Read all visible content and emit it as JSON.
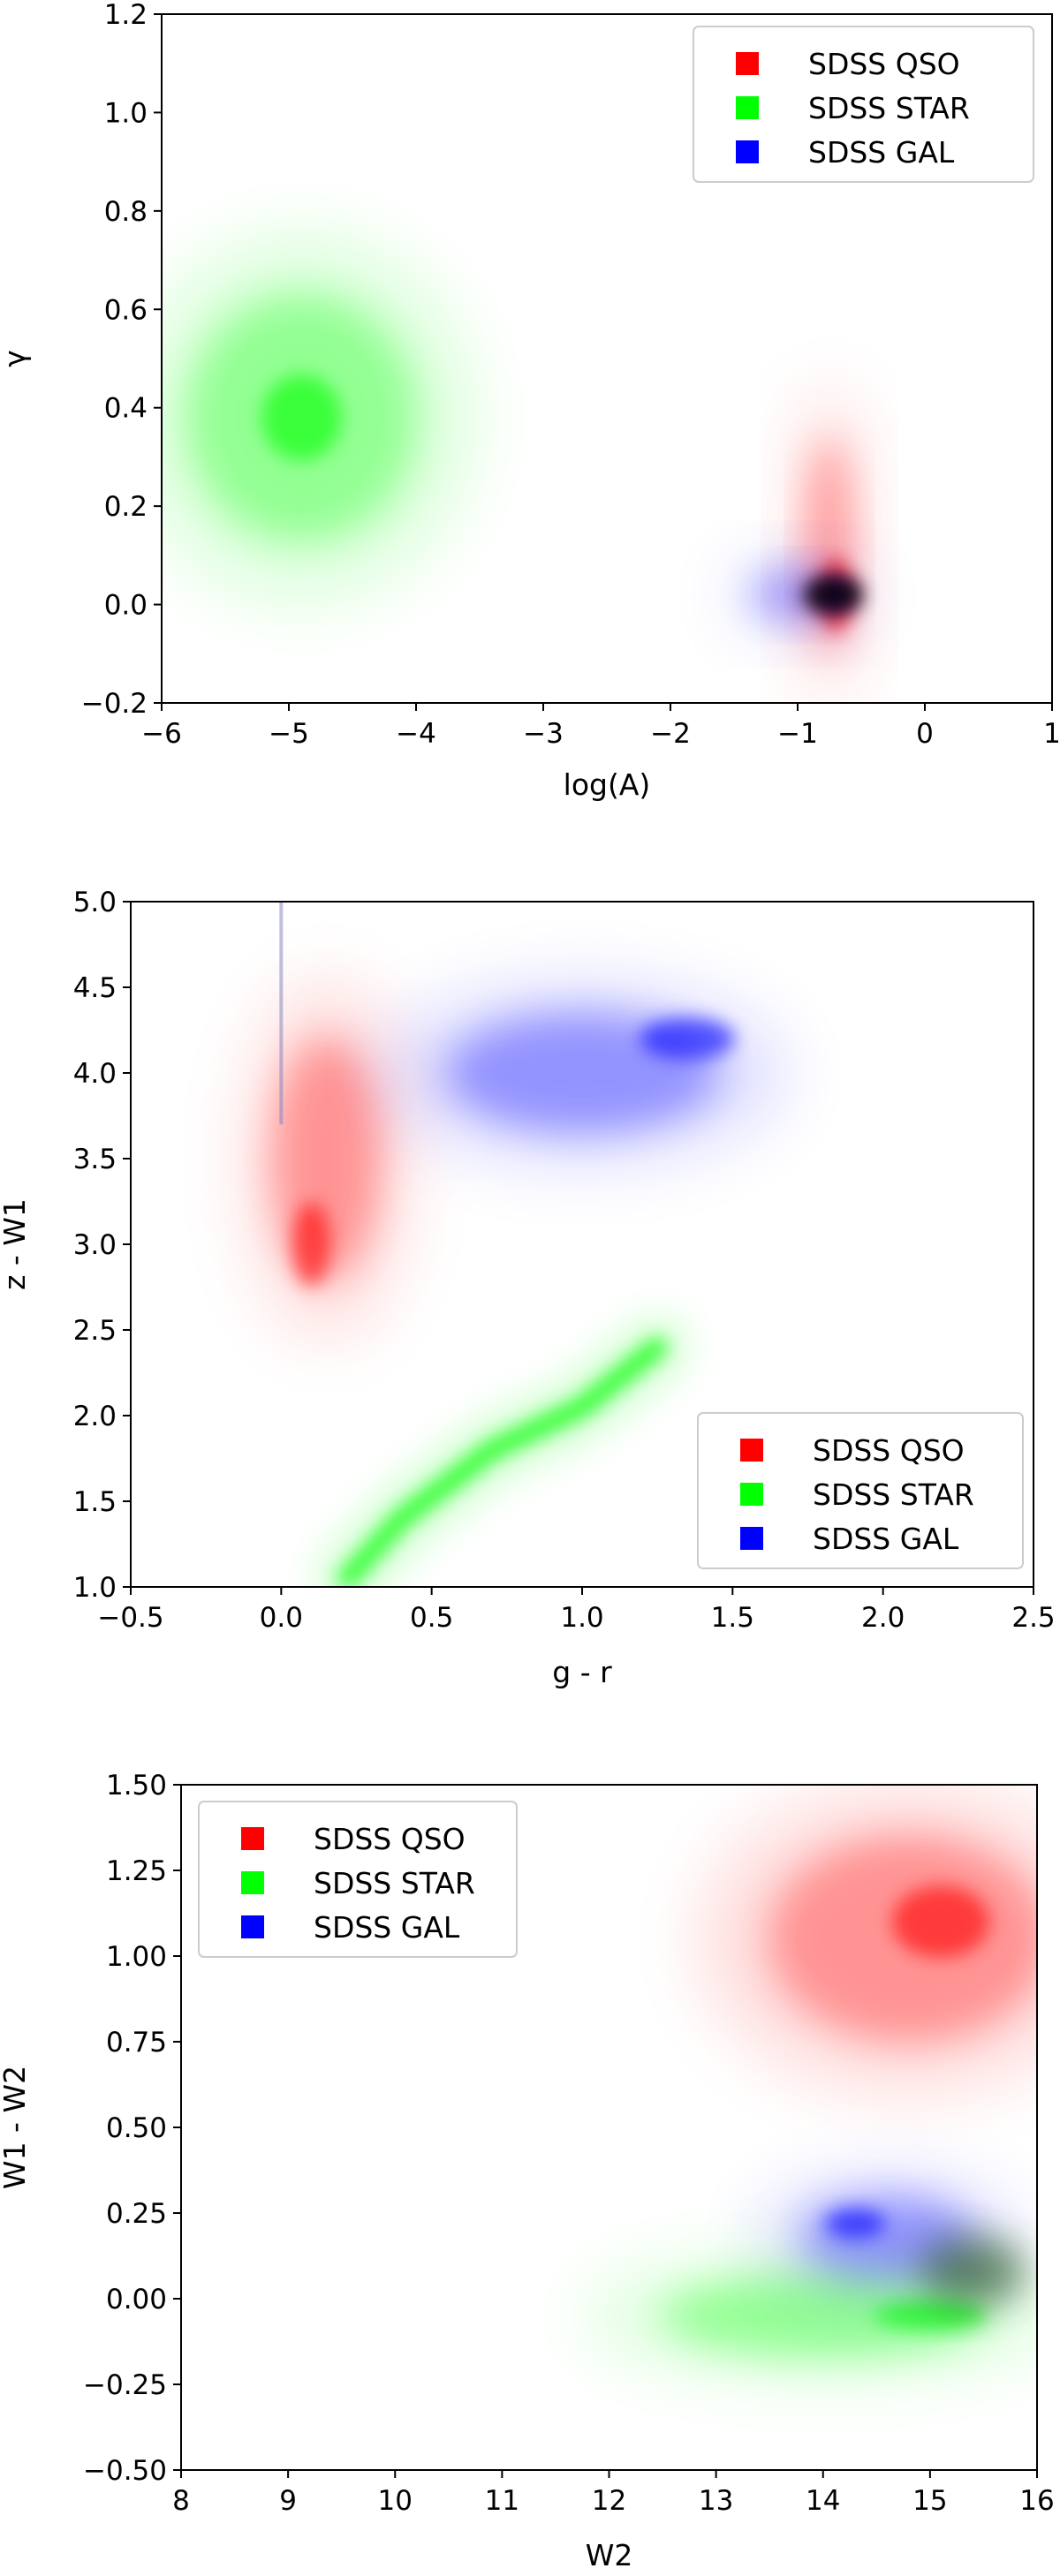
{
  "chart_data": [
    {
      "type": "scatter",
      "title": "",
      "xlabel": "log(A)",
      "ylabel": "γ",
      "xlim": [
        -6,
        1
      ],
      "ylim": [
        -0.2,
        1.2
      ],
      "xticks": [
        -6,
        -5,
        -4,
        -3,
        -2,
        -1,
        0,
        1
      ],
      "xtick_labels": [
        "−6",
        "−5",
        "−4",
        "−3",
        "−2",
        "−1",
        "0",
        "1"
      ],
      "yticks": [
        -0.2,
        0.0,
        0.2,
        0.4,
        0.6,
        0.8,
        1.0,
        1.2
      ],
      "ytick_labels": [
        "−0.2",
        "0.0",
        "0.2",
        "0.4",
        "0.6",
        "0.8",
        "1.0",
        "1.2"
      ],
      "legend_position": "top-right",
      "grid": false,
      "series": [
        {
          "name": "SDSS QSO",
          "color": "#ff0000",
          "center": [
            -0.75,
            0.12
          ],
          "spread": [
            0.18,
            0.22
          ],
          "density_peak": [
            -0.7,
            0.02
          ]
        },
        {
          "name": "SDSS STAR",
          "color": "#00ff00",
          "center": [
            -4.9,
            0.38
          ],
          "spread": [
            0.9,
            0.25
          ],
          "density_peak": [
            -4.9,
            0.38
          ]
        },
        {
          "name": "SDSS GAL",
          "color": "#0000ff",
          "center": [
            -1.0,
            0.02
          ],
          "spread": [
            0.35,
            0.05
          ],
          "density_peak": [
            -0.7,
            0.02
          ]
        }
      ]
    },
    {
      "type": "scatter",
      "title": "",
      "xlabel": "g - r",
      "ylabel": "z - W1",
      "xlim": [
        -0.5,
        2.5
      ],
      "ylim": [
        1.0,
        5.0
      ],
      "xticks": [
        -0.5,
        0.0,
        0.5,
        1.0,
        1.5,
        2.0,
        2.5
      ],
      "xtick_labels": [
        "−0.5",
        "0.0",
        "0.5",
        "1.0",
        "1.5",
        "2.0",
        "2.5"
      ],
      "yticks": [
        1.0,
        1.5,
        2.0,
        2.5,
        3.0,
        3.5,
        4.0,
        4.5,
        5.0
      ],
      "ytick_labels": [
        "1.0",
        "1.5",
        "2.0",
        "2.5",
        "3.0",
        "3.5",
        "4.0",
        "4.5",
        "5.0"
      ],
      "legend_position": "lower-right",
      "grid": false,
      "series": [
        {
          "name": "SDSS QSO",
          "color": "#ff0000",
          "center": [
            0.15,
            3.5
          ],
          "spread": [
            0.18,
            0.7
          ],
          "density_peak": [
            0.1,
            3.0
          ]
        },
        {
          "name": "SDSS STAR",
          "color": "#00ff00",
          "track": [
            [
              0.22,
              1.05
            ],
            [
              0.4,
              1.4
            ],
            [
              0.7,
              1.8
            ],
            [
              1.0,
              2.05
            ],
            [
              1.25,
              2.4
            ]
          ]
        },
        {
          "name": "SDSS GAL",
          "color": "#0000ff",
          "center": [
            1.0,
            4.0
          ],
          "spread": [
            0.45,
            0.35
          ],
          "density_peak": [
            1.35,
            4.2
          ]
        }
      ]
    },
    {
      "type": "scatter",
      "title": "",
      "xlabel": "W2",
      "ylabel": "W1 - W2",
      "xlim": [
        8,
        16
      ],
      "ylim": [
        -0.5,
        1.5
      ],
      "xticks": [
        8,
        9,
        10,
        11,
        12,
        13,
        14,
        15,
        16
      ],
      "xtick_labels": [
        "8",
        "9",
        "10",
        "11",
        "12",
        "13",
        "14",
        "15",
        "16"
      ],
      "yticks": [
        -0.5,
        -0.25,
        0.0,
        0.25,
        0.5,
        0.75,
        1.0,
        1.25,
        1.5
      ],
      "ytick_labels": [
        "−0.50",
        "−0.25",
        "0.00",
        "0.25",
        "0.50",
        "0.75",
        "1.00",
        "1.25",
        "1.50"
      ],
      "legend_position": "top-left",
      "grid": false,
      "series": [
        {
          "name": "SDSS QSO",
          "color": "#ff0000",
          "center": [
            14.8,
            1.05
          ],
          "spread": [
            1.3,
            0.3
          ],
          "density_peak": [
            15.1,
            1.1
          ]
        },
        {
          "name": "SDSS STAR",
          "color": "#00ff00",
          "center": [
            14.0,
            -0.05
          ],
          "spread": [
            1.5,
            0.12
          ],
          "density_peak": [
            15.0,
            -0.05
          ]
        },
        {
          "name": "SDSS GAL",
          "color": "#0000ff",
          "center": [
            14.6,
            0.18
          ],
          "spread": [
            0.8,
            0.12
          ],
          "density_peak": [
            14.3,
            0.22
          ]
        }
      ]
    }
  ]
}
